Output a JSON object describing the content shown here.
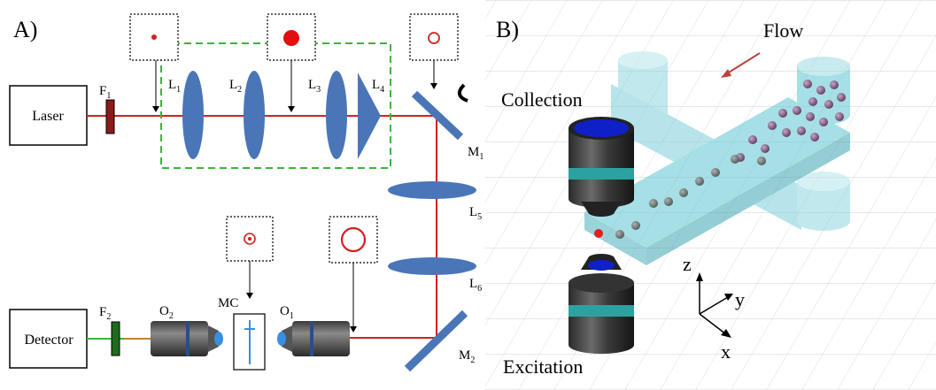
{
  "panel_a": {
    "label": "A)",
    "components": {
      "laser": "Laser",
      "detector": "Detector",
      "filter_1": {
        "main": "F",
        "sub": "1"
      },
      "filter_2": {
        "main": "F",
        "sub": "2"
      },
      "lens_1": {
        "main": "L",
        "sub": "1"
      },
      "lens_2": {
        "main": "L",
        "sub": "2"
      },
      "lens_3": {
        "main": "L",
        "sub": "3"
      },
      "lens_4": {
        "main": "L",
        "sub": "4"
      },
      "lens_5": {
        "main": "L",
        "sub": "5"
      },
      "lens_6": {
        "main": "L",
        "sub": "6"
      },
      "mirror_1": {
        "main": "M",
        "sub": "1"
      },
      "mirror_2": {
        "main": "M",
        "sub": "2"
      },
      "objective_1": {
        "main": "O",
        "sub": "1"
      },
      "objective_2": {
        "main": "O",
        "sub": "2"
      },
      "microchannel": "MC"
    },
    "colors": {
      "beam": "#d42020",
      "emission": "#3cb43c",
      "lens": "#4a76b8",
      "filter_1": "#8b1a1a",
      "filter_2": "#1e6b1e",
      "telescope_box": "#3cb43c"
    }
  },
  "panel_b": {
    "label": "B)",
    "flow_label": "Flow",
    "collection_label": "Collection",
    "excitation_label": "Excitation",
    "axes": {
      "z": "z",
      "y": "y",
      "x": "x"
    },
    "colors": {
      "channel": "#5fc6d3",
      "particle": "#8a5a8c",
      "objective_top": "#1020c8",
      "objective_band": "#2aa3a0",
      "flow_arrow": "#c04040"
    }
  }
}
